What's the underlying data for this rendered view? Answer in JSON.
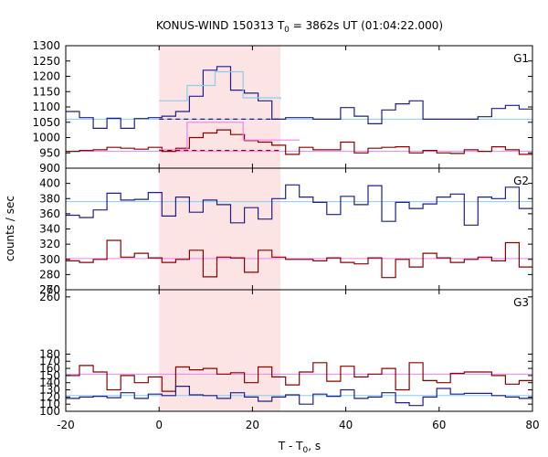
{
  "chart_data": {
    "type": "line",
    "title": "KONUS-WIND 150313 T",
    "title_sub": "0",
    "title_rest": " = 3862s UT (01:04:22.000)",
    "xlabel": "T - T",
    "xlabel_sub": "0",
    "xlabel_rest": ", s",
    "ylabel": "counts / sec",
    "xlim": [
      -20,
      80
    ],
    "x_ticks": [
      "-20",
      "0",
      "20",
      "40",
      "60",
      "80"
    ],
    "x_tick_values": [
      -20,
      0,
      20,
      40,
      60,
      80
    ],
    "highlight_interval": [
      0,
      26
    ],
    "highlight_color": "#fde4e4",
    "grid": false,
    "bin_width": 2.944,
    "bin_start": -20,
    "panels": [
      {
        "label": "G1",
        "ylim": [
          900,
          1300
        ],
        "y_ticks": [
          900,
          950,
          1000,
          1050,
          1100,
          1150,
          1200,
          1250,
          1300
        ],
        "series": [
          {
            "color": "#1e1e8c",
            "background": 1060,
            "background_color": "#87ceeb",
            "values": [
              1085,
              1065,
              1030,
              1063,
              1030,
              1062,
              1065,
              1070,
              1085,
              1135,
              1220,
              1232,
              1155,
              1145,
              1120,
              1060,
              1065,
              1065,
              1060,
              1060,
              1098,
              1070,
              1045,
              1090,
              1110,
              1120,
              1060,
              1060,
              1060,
              1060,
              1068,
              1095,
              1105,
              1093,
              1088
            ]
          },
          {
            "color": "#8b0000",
            "background": 955,
            "background_color": "#ee82ee",
            "values": [
              955,
              958,
              960,
              968,
              965,
              962,
              968,
              955,
              965,
              1000,
              1015,
              1025,
              1010,
              990,
              985,
              975,
              945,
              968,
              960,
              960,
              985,
              950,
              965,
              968,
              970,
              950,
              958,
              950,
              948,
              960,
              955,
              970,
              960,
              945,
              960
            ]
          }
        ],
        "fit_segments": [
          {
            "x": [
              0,
              6,
              12,
              18,
              26
            ],
            "y": [
              1120,
              1170,
              1215,
              1130,
              1125
            ],
            "color": "#87ceeb"
          },
          {
            "x": [
              0,
              6,
              18,
              30
            ],
            "y": [
              960,
              1050,
              992,
              990
            ],
            "color": "#ee82ee"
          }
        ],
        "dashed_levels": [
          {
            "x": [
              0,
              26
            ],
            "y": 1060,
            "color": "#1e1e8c"
          },
          {
            "x": [
              0,
              26
            ],
            "y": 958,
            "color": "#8b0000"
          }
        ]
      },
      {
        "label": "G2",
        "ylim": [
          260,
          420
        ],
        "y_ticks": [
          260,
          280,
          300,
          320,
          340,
          360,
          380,
          400
        ],
        "series": [
          {
            "color": "#1e1e8c",
            "background": 376,
            "background_color": "#87ceeb",
            "values": [
              358,
              355,
              365,
              387,
              378,
              379,
              388,
              357,
              382,
              362,
              378,
              372,
              348,
              368,
              353,
              380,
              398,
              382,
              375,
              359,
              383,
              372,
              397,
              350,
              375,
              367,
              373,
              382,
              386,
              345,
              382,
              380,
              395,
              367,
              370
            ]
          },
          {
            "color": "#8b0000",
            "background": 301,
            "background_color": "#ee82ee",
            "values": [
              298,
              296,
              300,
              325,
              303,
              308,
              302,
              296,
              300,
              312,
              277,
              303,
              302,
              283,
              312,
              303,
              300,
              300,
              298,
              302,
              296,
              294,
              302,
              276,
              300,
              290,
              308,
              302,
              296,
              300,
              303,
              298,
              322,
              290,
              308
            ]
          }
        ],
        "fit_segments": [],
        "dashed_levels": []
      },
      {
        "label": "G3",
        "ylim": [
          100,
          270
        ],
        "y_ticks": [
          100,
          110,
          120,
          130,
          140,
          150,
          160,
          170,
          180,
          260,
          270
        ],
        "series": [
          {
            "color": "#8b0000",
            "background": 152,
            "background_color": "#ee82ee",
            "values": [
              150,
              164,
              155,
              130,
              150,
              140,
              148,
              128,
              162,
              158,
              160,
              152,
              154,
              140,
              162,
              148,
              137,
              155,
              168,
              142,
              163,
              148,
              152,
              160,
              130,
              168,
              143,
              140,
              153,
              155,
              155,
              150,
              138,
              143,
              168
            ]
          },
          {
            "color": "#1e1e8c",
            "background": 122,
            "background_color": "#87ceeb",
            "values": [
              118,
              120,
              121,
              119,
              126,
              118,
              124,
              122,
              135,
              123,
              122,
              118,
              126,
              120,
              114,
              120,
              123,
              110,
              124,
              121,
              130,
              118,
              120,
              126,
              112,
              108,
              120,
              132,
              124,
              125,
              125,
              122,
              120,
              118,
              125
            ]
          }
        ],
        "fit_segments": [],
        "dashed_levels": []
      }
    ]
  }
}
